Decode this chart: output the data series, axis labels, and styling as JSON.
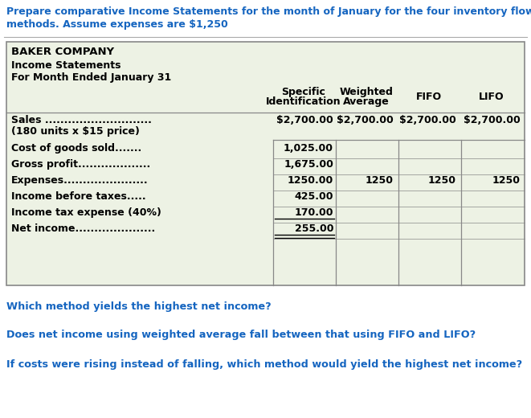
{
  "title_line1": "Prepare comparative Income Statements for the month of January for the four inventory flow",
  "title_line2": "methods. Assume expenses are $1,250",
  "title_color": "#1565C0",
  "title_fontsize": 9.0,
  "company_name": "BAKER COMPANY",
  "income_stmt": "Income Statements",
  "period": "For Month Ended January 31",
  "header_col1a": "Specific",
  "header_col1b": "Identification",
  "header_col2a": "Weighted",
  "header_col2b": "Average",
  "header_col3": "FIFO",
  "header_col4": "LIFO",
  "table_bg": "#EDF2E4",
  "table_border": "#888888",
  "row_labels": [
    "Sales ............................",
    "(180 units x $15 price)",
    "Cost of goods sold.......",
    "Gross profit...................",
    "Expenses......................",
    "Income before taxes.....",
    "Income tax expense (40%)",
    "Net income....................."
  ],
  "col1_values": [
    "$2,700.00",
    "",
    "1,025.00",
    "1,675.00",
    "1250.00",
    "425.00",
    "170.00",
    "255.00"
  ],
  "col2_values": [
    "$2,700.00",
    "",
    "",
    "",
    "1250",
    "",
    "",
    ""
  ],
  "col3_values": [
    "$2,700.00",
    "",
    "",
    "",
    "1250",
    "",
    "",
    ""
  ],
  "col4_values": [
    "$2,700.00",
    "",
    "",
    "",
    "1250",
    "",
    "",
    ""
  ],
  "questions": [
    "Which method yields the highest net income?",
    "Does net income using weighted average fall between that using FIFO and LIFO?",
    "If costs were rising instead of falling, which method would yield the highest net income?"
  ],
  "question_color": "#1565C0",
  "question_fontsize": 9.2,
  "fig_width": 6.61,
  "fig_height": 5.2,
  "dpi": 100
}
